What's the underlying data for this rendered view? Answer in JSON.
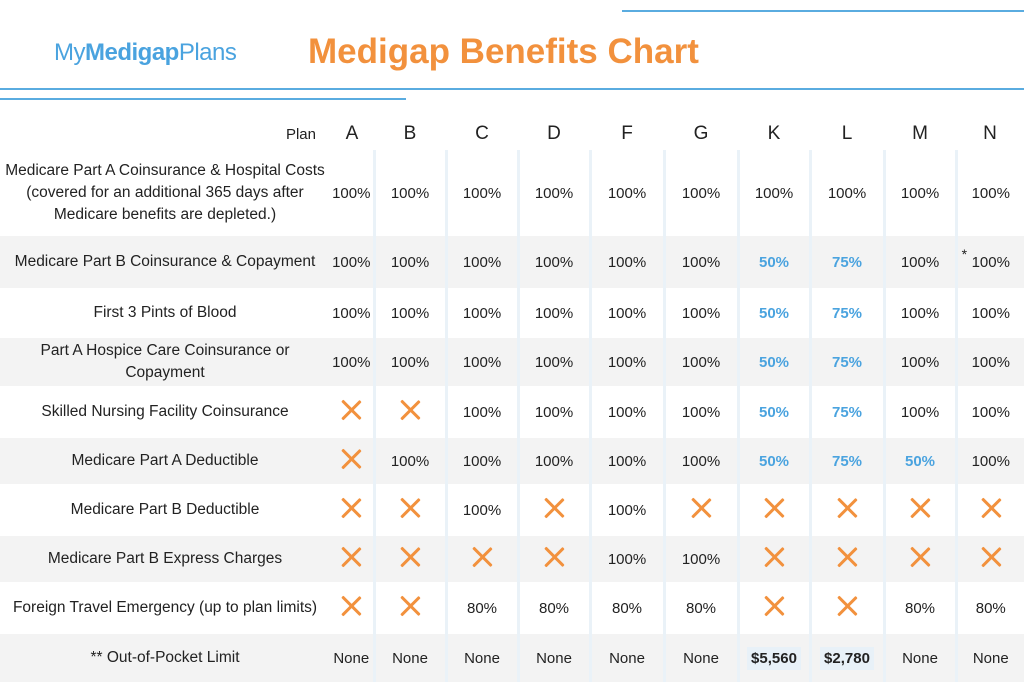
{
  "header": {
    "logo": {
      "my": "My",
      "medigap": "Medigap",
      "plans": "Plans"
    },
    "title": "Medigap Benefits Chart"
  },
  "colors": {
    "accent_orange": "#f2913d",
    "accent_blue": "#4aa3df",
    "row_shade": "#f3f3f3"
  },
  "table": {
    "plan_label": "Plan",
    "plans": [
      "A",
      "B",
      "C",
      "D",
      "F",
      "G",
      "K",
      "L",
      "M",
      "N"
    ],
    "rows": [
      {
        "label": "Medicare Part A Coinsurance & Hospital Costs (covered for an additional 365 days after Medicare benefits are depleted.)",
        "cells": [
          "100%",
          "100%",
          "100%",
          "100%",
          "100%",
          "100%",
          "100%",
          "100%",
          "100%",
          "100%"
        ]
      },
      {
        "label": "Medicare Part B Coinsurance & Copayment",
        "cells": [
          "100%",
          "100%",
          "100%",
          "100%",
          "100%",
          "100%",
          "50%",
          "75%",
          "100%",
          "100%"
        ],
        "note_n": "*"
      },
      {
        "label": "First 3 Pints of Blood",
        "cells": [
          "100%",
          "100%",
          "100%",
          "100%",
          "100%",
          "100%",
          "50%",
          "75%",
          "100%",
          "100%"
        ]
      },
      {
        "label": "Part A Hospice Care Coinsurance or Copayment",
        "cells": [
          "100%",
          "100%",
          "100%",
          "100%",
          "100%",
          "100%",
          "50%",
          "75%",
          "100%",
          "100%"
        ]
      },
      {
        "label": "Skilled Nursing Facility Coinsurance",
        "cells": [
          "x",
          "x",
          "100%",
          "100%",
          "100%",
          "100%",
          "50%",
          "75%",
          "100%",
          "100%"
        ]
      },
      {
        "label": "Medicare Part A Deductible",
        "cells": [
          "x",
          "100%",
          "100%",
          "100%",
          "100%",
          "100%",
          "50%",
          "75%",
          "50%",
          "100%"
        ]
      },
      {
        "label": "Medicare Part B Deductible",
        "cells": [
          "x",
          "x",
          "100%",
          "x",
          "100%",
          "x",
          "x",
          "x",
          "x",
          "x"
        ]
      },
      {
        "label": "Medicare Part B Express Charges",
        "cells": [
          "x",
          "x",
          "x",
          "x",
          "100%",
          "100%",
          "x",
          "x",
          "x",
          "x"
        ]
      },
      {
        "label": "Foreign Travel Emergency (up to plan limits)",
        "cells": [
          "x",
          "x",
          "80%",
          "80%",
          "80%",
          "80%",
          "x",
          "x",
          "80%",
          "80%"
        ]
      },
      {
        "label": "** Out-of-Pocket Limit",
        "cells": [
          "None",
          "None",
          "None",
          "None",
          "None",
          "None",
          "$5,560",
          "$2,780",
          "None",
          "None"
        ]
      }
    ]
  }
}
